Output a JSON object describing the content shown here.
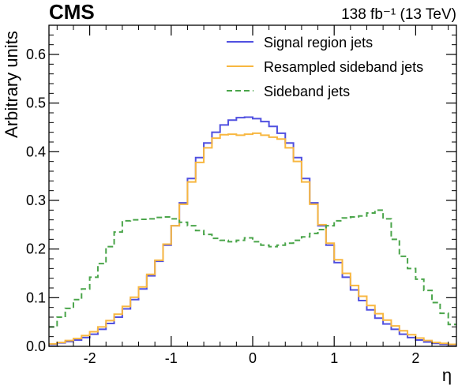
{
  "chart_data": {
    "type": "step",
    "experiment_label": "CMS",
    "lumi_label": "138 fb⁻¹ (13 TeV)",
    "xlabel": "η",
    "ylabel": "Arbitrary units",
    "xlim": [
      -2.5,
      2.5
    ],
    "ylim": [
      0.0,
      0.66
    ],
    "xticks": [
      -2,
      -1,
      0,
      1,
      2
    ],
    "xtick_labels": [
      "-2",
      "-1",
      "0",
      "1",
      "2"
    ],
    "yticks": [
      0.0,
      0.1,
      0.2,
      0.3,
      0.4,
      0.5,
      0.6
    ],
    "ytick_labels": [
      "0.0",
      "0.1",
      "0.2",
      "0.3",
      "0.4",
      "0.5",
      "0.6"
    ],
    "legend_position": "top-right",
    "bin_edges": [
      -2.5,
      -2.4,
      -2.3,
      -2.2,
      -2.1,
      -2.0,
      -1.9,
      -1.8,
      -1.7,
      -1.6,
      -1.5,
      -1.4,
      -1.3,
      -1.2,
      -1.1,
      -1.0,
      -0.9,
      -0.8,
      -0.7,
      -0.6,
      -0.5,
      -0.4,
      -0.3,
      -0.2,
      -0.1,
      0.0,
      0.1,
      0.2,
      0.3,
      0.4,
      0.5,
      0.6,
      0.7,
      0.8,
      0.9,
      1.0,
      1.1,
      1.2,
      1.3,
      1.4,
      1.5,
      1.6,
      1.7,
      1.8,
      1.9,
      2.0,
      2.1,
      2.2,
      2.3,
      2.4,
      2.5
    ],
    "series": [
      {
        "name": "Signal region jets",
        "color": "#5050e0",
        "style": "solid",
        "values": [
          0.004,
          0.007,
          0.01,
          0.013,
          0.018,
          0.025,
          0.035,
          0.047,
          0.06,
          0.077,
          0.096,
          0.118,
          0.145,
          0.175,
          0.208,
          0.248,
          0.295,
          0.345,
          0.388,
          0.418,
          0.44,
          0.455,
          0.465,
          0.47,
          0.471,
          0.468,
          0.462,
          0.452,
          0.438,
          0.418,
          0.388,
          0.345,
          0.295,
          0.248,
          0.208,
          0.172,
          0.142,
          0.116,
          0.094,
          0.075,
          0.058,
          0.046,
          0.035,
          0.025,
          0.018,
          0.013,
          0.009,
          0.006,
          0.004,
          0.003
        ]
      },
      {
        "name": "Resampled sideband jets",
        "color": "#f8b740",
        "style": "solid",
        "values": [
          0.005,
          0.008,
          0.012,
          0.016,
          0.022,
          0.03,
          0.04,
          0.053,
          0.066,
          0.082,
          0.101,
          0.122,
          0.148,
          0.177,
          0.21,
          0.248,
          0.292,
          0.338,
          0.378,
          0.408,
          0.428,
          0.435,
          0.436,
          0.434,
          0.436,
          0.438,
          0.434,
          0.43,
          0.426,
          0.408,
          0.38,
          0.338,
          0.292,
          0.25,
          0.212,
          0.178,
          0.15,
          0.125,
          0.103,
          0.084,
          0.067,
          0.054,
          0.042,
          0.032,
          0.024,
          0.017,
          0.012,
          0.008,
          0.006,
          0.004
        ]
      },
      {
        "name": "Sideband jets",
        "color": "#4aa54a",
        "style": "dashed",
        "values": [
          0.04,
          0.06,
          0.078,
          0.096,
          0.118,
          0.142,
          0.17,
          0.205,
          0.235,
          0.258,
          0.26,
          0.261,
          0.262,
          0.265,
          0.266,
          0.262,
          0.255,
          0.248,
          0.238,
          0.23,
          0.222,
          0.218,
          0.215,
          0.218,
          0.223,
          0.215,
          0.208,
          0.205,
          0.208,
          0.212,
          0.218,
          0.225,
          0.232,
          0.24,
          0.248,
          0.258,
          0.264,
          0.266,
          0.268,
          0.274,
          0.28,
          0.262,
          0.22,
          0.185,
          0.16,
          0.138,
          0.115,
          0.09,
          0.068,
          0.045
        ]
      }
    ]
  }
}
